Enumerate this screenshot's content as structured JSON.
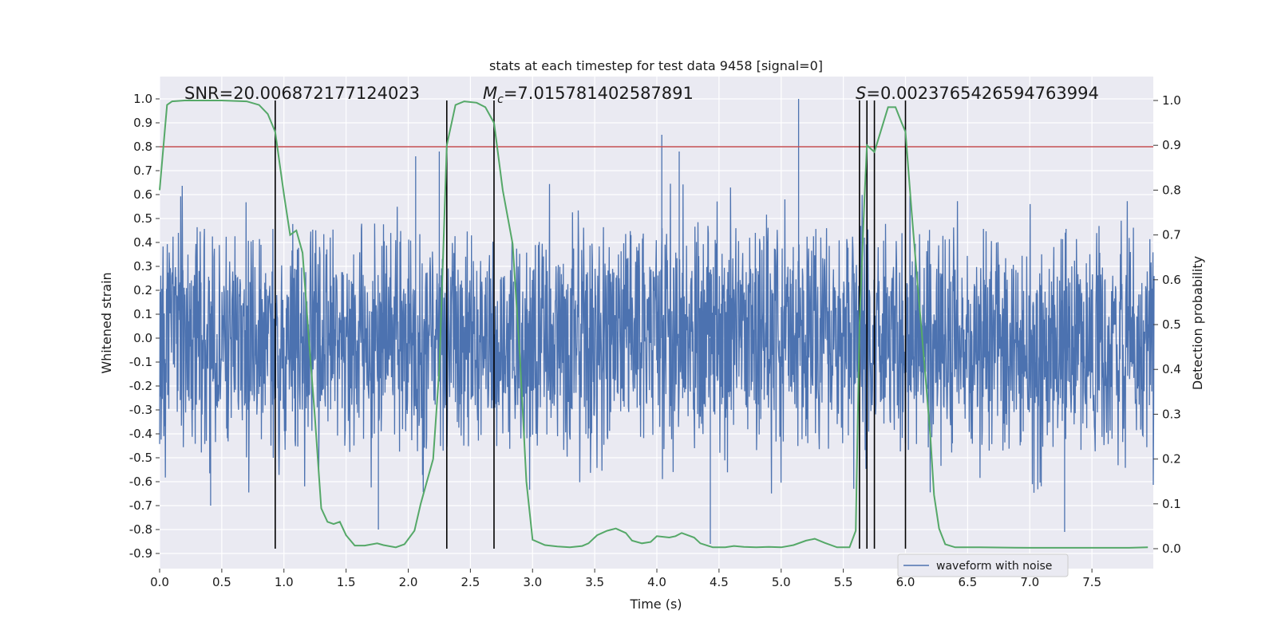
{
  "chart_data": {
    "type": "line",
    "title": "stats at each timestep for test data 9458 [signal=0]",
    "xlabel": "Time (s)",
    "ylabel_left": "Whitened strain",
    "ylabel_right": "Detection probability",
    "xlim": [
      0,
      8
    ],
    "ylim_left": [
      -0.97,
      1.09
    ],
    "ylim_right": [
      -0.05,
      1.04
    ],
    "x_ticks": [
      "0.0",
      "0.5",
      "1.0",
      "1.5",
      "2.0",
      "2.5",
      "3.0",
      "3.5",
      "4.0",
      "4.5",
      "5.0",
      "5.5",
      "6.0",
      "6.5",
      "7.0",
      "7.5"
    ],
    "y_ticks_left": [
      "1.0",
      "0.9",
      "0.8",
      "0.7",
      "0.6",
      "0.5",
      "0.4",
      "0.3",
      "0.2",
      "0.1",
      "0.0",
      "-0.1",
      "-0.2",
      "-0.3",
      "-0.4",
      "-0.5",
      "-0.6",
      "-0.7",
      "-0.8",
      "-0.9"
    ],
    "y_ticks_right": [
      "1.0",
      "0.9",
      "0.8",
      "0.7",
      "0.6",
      "0.5",
      "0.4",
      "0.3",
      "0.2",
      "0.1",
      "0.0"
    ],
    "annotations": {
      "snr": "SNR=20.006872177124023",
      "mc_symbol": "M",
      "mc_sub": "c",
      "mc_value": "=7.015781402587891",
      "s_symbol": "S",
      "s_value": "=0.0023765426594763994"
    },
    "legend": {
      "label": "waveform with noise",
      "placement": "lower center-right"
    },
    "threshold": {
      "value": 0.8,
      "axis": "left",
      "color": "#c44e52"
    },
    "detection_boundaries_s": [
      0.93,
      2.31,
      2.69,
      5.63,
      5.69,
      5.75,
      6.0
    ],
    "waveform_series": {
      "name": "waveform with noise",
      "color": "#4c72b0",
      "t_range": [
        0,
        8
      ],
      "typical_abs_amplitude": 0.3,
      "peak_spikes": [
        {
          "t": 5.14,
          "v": 1.0
        },
        {
          "t": 4.04,
          "v": 0.85
        },
        {
          "t": 4.18,
          "v": 0.78
        },
        {
          "t": 2.06,
          "v": 0.76
        },
        {
          "t": 2.25,
          "v": 0.78
        },
        {
          "t": 1.76,
          "v": -0.8
        },
        {
          "t": 4.43,
          "v": -0.86
        },
        {
          "t": 7.28,
          "v": -0.81
        },
        {
          "t": 0.41,
          "v": -0.7
        }
      ]
    },
    "probability_series": {
      "name": "detection probability",
      "color": "#55a868",
      "axis": "right",
      "points": [
        [
          0.0,
          0.8
        ],
        [
          0.06,
          0.99
        ],
        [
          0.1,
          0.998
        ],
        [
          0.2,
          1.0
        ],
        [
          0.5,
          1.0
        ],
        [
          0.7,
          0.998
        ],
        [
          0.8,
          0.99
        ],
        [
          0.87,
          0.97
        ],
        [
          0.93,
          0.93
        ],
        [
          1.0,
          0.79
        ],
        [
          1.05,
          0.7
        ],
        [
          1.1,
          0.71
        ],
        [
          1.15,
          0.66
        ],
        [
          1.2,
          0.47
        ],
        [
          1.25,
          0.29
        ],
        [
          1.3,
          0.09
        ],
        [
          1.35,
          0.06
        ],
        [
          1.4,
          0.055
        ],
        [
          1.45,
          0.06
        ],
        [
          1.5,
          0.03
        ],
        [
          1.57,
          0.007
        ],
        [
          1.65,
          0.007
        ],
        [
          1.75,
          0.012
        ],
        [
          1.8,
          0.008
        ],
        [
          1.9,
          0.003
        ],
        [
          1.97,
          0.01
        ],
        [
          2.05,
          0.04
        ],
        [
          2.1,
          0.1
        ],
        [
          2.15,
          0.15
        ],
        [
          2.2,
          0.2
        ],
        [
          2.25,
          0.4
        ],
        [
          2.31,
          0.9
        ],
        [
          2.38,
          0.99
        ],
        [
          2.45,
          0.998
        ],
        [
          2.55,
          0.995
        ],
        [
          2.62,
          0.985
        ],
        [
          2.69,
          0.95
        ],
        [
          2.76,
          0.8
        ],
        [
          2.84,
          0.68
        ],
        [
          2.9,
          0.42
        ],
        [
          2.95,
          0.15
        ],
        [
          3.0,
          0.02
        ],
        [
          3.1,
          0.008
        ],
        [
          3.2,
          0.005
        ],
        [
          3.3,
          0.003
        ],
        [
          3.4,
          0.006
        ],
        [
          3.45,
          0.012
        ],
        [
          3.52,
          0.03
        ],
        [
          3.6,
          0.04
        ],
        [
          3.67,
          0.045
        ],
        [
          3.75,
          0.035
        ],
        [
          3.8,
          0.018
        ],
        [
          3.88,
          0.012
        ],
        [
          3.95,
          0.015
        ],
        [
          4.0,
          0.028
        ],
        [
          4.1,
          0.025
        ],
        [
          4.15,
          0.028
        ],
        [
          4.2,
          0.035
        ],
        [
          4.3,
          0.025
        ],
        [
          4.35,
          0.012
        ],
        [
          4.45,
          0.003
        ],
        [
          4.55,
          0.003
        ],
        [
          4.62,
          0.006
        ],
        [
          4.7,
          0.004
        ],
        [
          4.8,
          0.003
        ],
        [
          4.9,
          0.004
        ],
        [
          5.0,
          0.003
        ],
        [
          5.1,
          0.008
        ],
        [
          5.2,
          0.018
        ],
        [
          5.27,
          0.022
        ],
        [
          5.35,
          0.013
        ],
        [
          5.45,
          0.003
        ],
        [
          5.55,
          0.003
        ],
        [
          5.6,
          0.04
        ],
        [
          5.63,
          0.5
        ],
        [
          5.67,
          0.78
        ],
        [
          5.69,
          0.9
        ],
        [
          5.73,
          0.89
        ],
        [
          5.75,
          0.885
        ],
        [
          5.8,
          0.93
        ],
        [
          5.86,
          0.985
        ],
        [
          5.92,
          0.985
        ],
        [
          5.97,
          0.95
        ],
        [
          6.0,
          0.93
        ],
        [
          6.05,
          0.75
        ],
        [
          6.1,
          0.58
        ],
        [
          6.15,
          0.42
        ],
        [
          6.2,
          0.25
        ],
        [
          6.23,
          0.12
        ],
        [
          6.27,
          0.045
        ],
        [
          6.32,
          0.01
        ],
        [
          6.4,
          0.003
        ],
        [
          6.6,
          0.003
        ],
        [
          7.0,
          0.002
        ],
        [
          7.5,
          0.002
        ],
        [
          7.8,
          0.002
        ],
        [
          7.95,
          0.003
        ]
      ]
    }
  }
}
